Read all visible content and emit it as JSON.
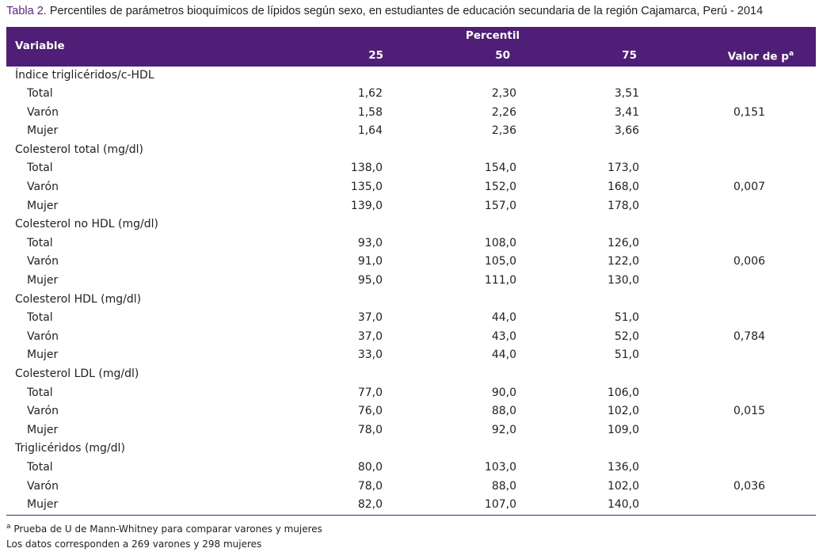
{
  "caption": {
    "label": "Tabla 2.",
    "text": " Percentiles de parámetros bioquímicos de lípidos según sexo, en estudiantes de educación secundaria de la región Cajamarca, Perú - 2014"
  },
  "header": {
    "variable": "Variable",
    "percentil": "Percentil",
    "p25": "25",
    "p50": "50",
    "p75": "75",
    "pvalue": "Valor de p",
    "pvalue_sup": "a"
  },
  "groups": [
    {
      "name": "Índice triglicéridos/c-HDL",
      "pvalue": "0,151",
      "rows": [
        {
          "label": "Total",
          "p25": "1,62",
          "p50": "2,30",
          "p75": "3,51"
        },
        {
          "label": "Varón",
          "p25": "1,58",
          "p50": "2,26",
          "p75": "3,41"
        },
        {
          "label": "Mujer",
          "p25": "1,64",
          "p50": "2,36",
          "p75": "3,66"
        }
      ]
    },
    {
      "name": "Colesterol total (mg/dl)",
      "pvalue": "0,007",
      "rows": [
        {
          "label": "Total",
          "p25": "138,0",
          "p50": "154,0",
          "p75": "173,0"
        },
        {
          "label": "Varón",
          "p25": "135,0",
          "p50": "152,0",
          "p75": "168,0"
        },
        {
          "label": "Mujer",
          "p25": "139,0",
          "p50": "157,0",
          "p75": "178,0"
        }
      ]
    },
    {
      "name": "Colesterol no HDL (mg/dl)",
      "pvalue": "0,006",
      "rows": [
        {
          "label": "Total",
          "p25": "93,0",
          "p50": "108,0",
          "p75": "126,0"
        },
        {
          "label": "Varón",
          "p25": "91,0",
          "p50": "105,0",
          "p75": "122,0"
        },
        {
          "label": "Mujer",
          "p25": "95,0",
          "p50": "111,0",
          "p75": "130,0"
        }
      ]
    },
    {
      "name": "Colesterol HDL (mg/dl)",
      "pvalue": "0,784",
      "rows": [
        {
          "label": "Total",
          "p25": "37,0",
          "p50": "44,0",
          "p75": "51,0"
        },
        {
          "label": "Varón",
          "p25": "37,0",
          "p50": "43,0",
          "p75": "52,0"
        },
        {
          "label": "Mujer",
          "p25": "33,0",
          "p50": "44,0",
          "p75": "51,0"
        }
      ]
    },
    {
      "name": "Colesterol LDL (mg/dl)",
      "pvalue": "0,015",
      "rows": [
        {
          "label": "Total",
          "p25": "77,0",
          "p50": "90,0",
          "p75": "106,0"
        },
        {
          "label": "Varón",
          "p25": "76,0",
          "p50": "88,0",
          "p75": "102,0"
        },
        {
          "label": "Mujer",
          "p25": "78,0",
          "p50": "92,0",
          "p75": "109,0"
        }
      ]
    },
    {
      "name": "Triglicéridos (mg/dl)",
      "pvalue": "0,036",
      "rows": [
        {
          "label": "Total",
          "p25": "80,0",
          "p50": "103,0",
          "p75": "136,0"
        },
        {
          "label": "Varón",
          "p25": "78,0",
          "p50": "88,0",
          "p75": "102,0"
        },
        {
          "label": "Mujer",
          "p25": "82,0",
          "p50": "107,0",
          "p75": "140,0"
        }
      ]
    }
  ],
  "notes": {
    "note_a_sup": "a",
    "note_a": " Prueba de U de Mann-Whitney para comparar varones y mujeres",
    "note_b": "Los datos corresponden a 269 varones y 298 mujeres"
  },
  "colors": {
    "header_bg": "#4f1f78",
    "caption_label": "#5a2483"
  }
}
